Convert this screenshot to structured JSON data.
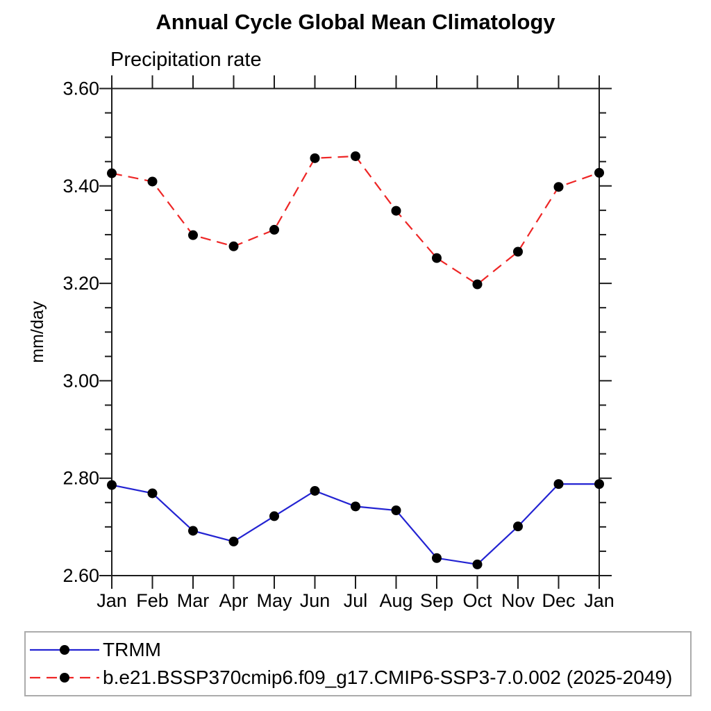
{
  "header": {
    "title": "Annual Cycle Global Mean Climatology",
    "subtitle": "Precipitation rate"
  },
  "chart_data": {
    "type": "line",
    "title": "Annual Cycle Global Mean Climatology",
    "subtitle": "Precipitation rate",
    "xlabel": "",
    "ylabel": "mm/day",
    "ylim": [
      2.6,
      3.6
    ],
    "ytick_step": 0.2,
    "yminor_step": 0.05,
    "ytick_labels": [
      "2.60",
      "2.80",
      "3.00",
      "3.20",
      "3.40",
      "3.60"
    ],
    "categories": [
      "Jan",
      "Feb",
      "Mar",
      "Apr",
      "May",
      "Jun",
      "Jul",
      "Aug",
      "Sep",
      "Oct",
      "Nov",
      "Dec",
      "Jan"
    ],
    "grid": false,
    "legend_position": "bottom-left-box",
    "axis_color": "#1c1c1c",
    "marker": {
      "shape": "circle",
      "color": "#000000"
    },
    "series": [
      {
        "name": "TRMM",
        "color": "#2323d2",
        "line_style": "solid",
        "values": [
          2.786,
          2.769,
          2.692,
          2.67,
          2.722,
          2.774,
          2.742,
          2.734,
          2.636,
          2.623,
          2.701,
          2.788,
          2.788
        ]
      },
      {
        "name": "b.e21.BSSP370cmip6.f09_g17.CMIP6-SSP3-7.0.002 (2025-2049)",
        "color": "#ee2626",
        "line_style": "dashed",
        "values": [
          3.426,
          3.409,
          3.299,
          3.276,
          3.31,
          3.457,
          3.461,
          3.349,
          3.252,
          3.198,
          3.265,
          3.398,
          3.427
        ]
      }
    ]
  }
}
